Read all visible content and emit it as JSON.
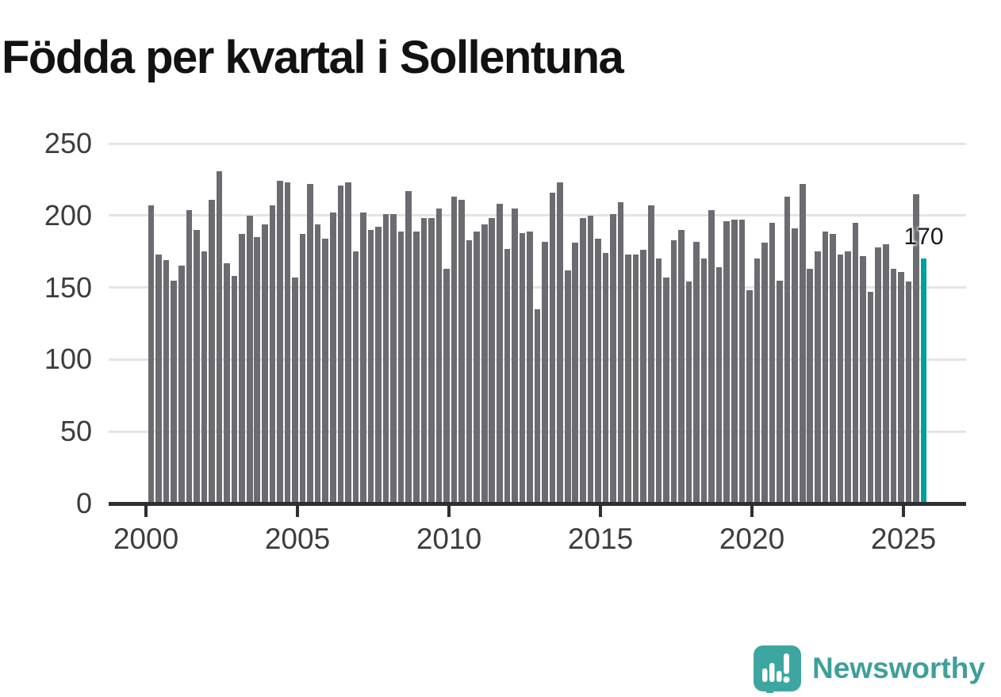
{
  "title": "Födda per kvartal i Sollentuna",
  "watermark": {
    "brand": "Newsworthy",
    "logo_icon": "speech-bubble-bar-chart-icon"
  },
  "colors": {
    "bar": "#6b6b71",
    "highlight": "#00a09b",
    "axis": "#2e2e33",
    "grid": "#e4e4e6",
    "tick_text": "#3d3d3d",
    "title_text": "#121212",
    "brand_teal": "#3f9f9a"
  },
  "chart_data": {
    "type": "bar",
    "title": "Födda per kvartal i Sollentuna",
    "x_unit": "quarter",
    "start": "2000-Q1",
    "end": "2025-Q3",
    "xlabel": "",
    "ylabel": "",
    "ylim": [
      0,
      250
    ],
    "grid": "horizontal",
    "x_tick_labels": [
      "2000",
      "2005",
      "2010",
      "2015",
      "2020",
      "2025"
    ],
    "y_tick_labels": [
      "0",
      "50",
      "100",
      "150",
      "200",
      "250"
    ],
    "highlight_last": true,
    "last_value_label": "170",
    "values": [
      207,
      173,
      169,
      155,
      165,
      204,
      190,
      175,
      211,
      231,
      167,
      158,
      187,
      200,
      185,
      194,
      207,
      224,
      223,
      157,
      187,
      222,
      194,
      184,
      202,
      221,
      223,
      175,
      202,
      190,
      192,
      201,
      201,
      189,
      217,
      189,
      198,
      198,
      205,
      163,
      213,
      211,
      183,
      189,
      194,
      198,
      208,
      177,
      205,
      188,
      189,
      135,
      182,
      216,
      223,
      162,
      181,
      198,
      200,
      184,
      174,
      201,
      209,
      173,
      173,
      176,
      207,
      170,
      157,
      183,
      190,
      154,
      182,
      170,
      204,
      164,
      196,
      197,
      197,
      148,
      170,
      181,
      195,
      155,
      213,
      191,
      222,
      163,
      175,
      189,
      187,
      173,
      175,
      195,
      172,
      147,
      178,
      180,
      163,
      161,
      154,
      215,
      170
    ]
  }
}
